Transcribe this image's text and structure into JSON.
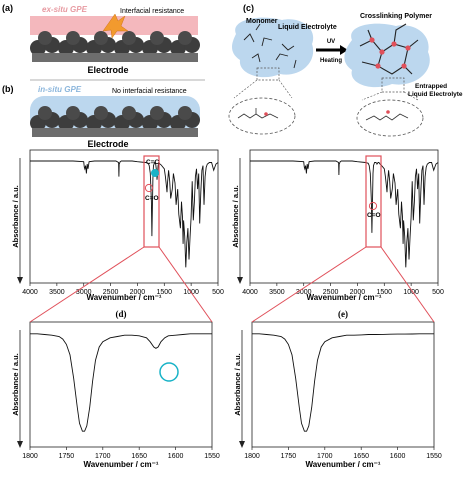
{
  "panel_a": {
    "label": "(a)",
    "gpe_label": "ex-situ GPE",
    "annotation": "Interfacial resistance",
    "electrode": "Electrode"
  },
  "panel_b": {
    "label": "(b)",
    "gpe_label": "in-situ GPE",
    "annotation": "No interfacial resistance",
    "electrode": "Electrode"
  },
  "panel_c": {
    "label": "(c)",
    "monomer": "Monomer",
    "liquid_electrolyte": "Liquid Electrolyte",
    "crosslinking_polymer": "Crosslinking Polymer",
    "uv": "UV",
    "heating": "Heating",
    "entrapped_1": "Entrapped",
    "entrapped_2": "Liquid Electrolyte"
  },
  "colors": {
    "gpe_pink": "#f4b8bd",
    "gpe_blue": "#bcd7ee",
    "highlight_red": "#e0505a",
    "circle_cyan": "#19b3c7",
    "sphere": "#3d3d3d",
    "electrode": "#6d6d6d"
  },
  "chart_data": [
    {
      "id": "ftir-left",
      "type": "line",
      "xlabel": "Wavenumber / cm⁻¹",
      "ylabel": "Absorbance / a.u.",
      "xlim": [
        4000,
        500
      ],
      "xticks": [
        4000,
        3500,
        3000,
        2500,
        2000,
        1500,
        1000,
        500
      ],
      "annotations": [
        "C=C",
        "C=O"
      ],
      "x": [
        4000,
        3600,
        3200,
        3000,
        2990,
        2980,
        2965,
        2950,
        2935,
        2920,
        2900,
        2800,
        2400,
        2350,
        2345,
        2340,
        2320,
        2300,
        2100,
        2000,
        1850,
        1800,
        1780,
        1760,
        1740,
        1730,
        1720,
        1710,
        1700,
        1680,
        1660,
        1640,
        1635,
        1625,
        1615,
        1600,
        1580,
        1560,
        1500,
        1480,
        1460,
        1450,
        1440,
        1420,
        1400,
        1380,
        1350,
        1330,
        1300,
        1280,
        1250,
        1230,
        1200,
        1180,
        1160,
        1150,
        1140,
        1120,
        1100,
        1080,
        1060,
        1040,
        1020,
        1000,
        980,
        960,
        940,
        920,
        900,
        880,
        860,
        840,
        820,
        800,
        780,
        760,
        740,
        720,
        700,
        660,
        620,
        580,
        540,
        500
      ],
      "y": [
        0.98,
        0.98,
        0.98,
        0.975,
        0.94,
        0.93,
        0.95,
        0.9,
        0.96,
        0.93,
        0.975,
        0.98,
        0.98,
        0.97,
        0.88,
        0.96,
        0.975,
        0.98,
        0.98,
        0.975,
        0.97,
        0.965,
        0.95,
        0.9,
        0.72,
        0.5,
        0.72,
        0.9,
        0.95,
        0.97,
        0.96,
        0.9,
        0.86,
        0.9,
        0.95,
        0.97,
        0.96,
        0.955,
        0.93,
        0.88,
        0.82,
        0.78,
        0.84,
        0.92,
        0.85,
        0.74,
        0.8,
        0.9,
        0.84,
        0.7,
        0.8,
        0.64,
        0.55,
        0.72,
        0.62,
        0.45,
        0.6,
        0.5,
        0.3,
        0.46,
        0.55,
        0.35,
        0.5,
        0.62,
        0.85,
        0.6,
        0.72,
        0.88,
        0.93,
        0.8,
        0.9,
        0.58,
        0.78,
        0.92,
        0.95,
        0.7,
        0.88,
        0.94,
        0.96,
        0.97,
        0.97,
        0.92,
        0.96,
        0.97
      ]
    },
    {
      "id": "ftir-right",
      "type": "line",
      "xlabel": "Wavenumber / cm⁻¹",
      "ylabel": "Absorbance / a.u.",
      "xlim": [
        4000,
        500
      ],
      "xticks": [
        4000,
        3500,
        3000,
        2500,
        2000,
        1500,
        1000,
        500
      ],
      "annotations": [
        "C=O"
      ],
      "x": [
        4000,
        3600,
        3200,
        3000,
        2990,
        2980,
        2965,
        2950,
        2935,
        2920,
        2900,
        2800,
        2400,
        2350,
        2345,
        2340,
        2320,
        2300,
        2100,
        2000,
        1850,
        1800,
        1780,
        1760,
        1740,
        1730,
        1720,
        1710,
        1700,
        1680,
        1660,
        1640,
        1635,
        1625,
        1615,
        1600,
        1580,
        1560,
        1500,
        1480,
        1460,
        1450,
        1440,
        1420,
        1400,
        1380,
        1350,
        1330,
        1300,
        1280,
        1250,
        1230,
        1200,
        1180,
        1160,
        1150,
        1140,
        1120,
        1100,
        1080,
        1060,
        1040,
        1020,
        1000,
        980,
        960,
        940,
        920,
        900,
        880,
        860,
        840,
        820,
        800,
        780,
        760,
        740,
        720,
        700,
        660,
        620,
        580,
        540,
        500
      ],
      "y": [
        0.98,
        0.98,
        0.98,
        0.975,
        0.94,
        0.93,
        0.95,
        0.9,
        0.96,
        0.93,
        0.975,
        0.98,
        0.98,
        0.97,
        0.89,
        0.96,
        0.975,
        0.98,
        0.98,
        0.975,
        0.97,
        0.965,
        0.95,
        0.9,
        0.72,
        0.52,
        0.72,
        0.9,
        0.95,
        0.97,
        0.97,
        0.965,
        0.96,
        0.965,
        0.97,
        0.97,
        0.96,
        0.955,
        0.93,
        0.88,
        0.82,
        0.78,
        0.84,
        0.92,
        0.85,
        0.74,
        0.8,
        0.9,
        0.84,
        0.7,
        0.8,
        0.64,
        0.55,
        0.72,
        0.62,
        0.45,
        0.6,
        0.5,
        0.3,
        0.46,
        0.55,
        0.35,
        0.5,
        0.62,
        0.85,
        0.6,
        0.72,
        0.88,
        0.93,
        0.8,
        0.9,
        0.58,
        0.78,
        0.92,
        0.95,
        0.7,
        0.88,
        0.94,
        0.96,
        0.97,
        0.97,
        0.92,
        0.96,
        0.97
      ]
    },
    {
      "id": "ftir-zoom-d",
      "label": "(d)",
      "type": "line",
      "xlabel": "Wavenumber / cm⁻¹",
      "ylabel": "Absorbance / a.u.",
      "xlim": [
        1800,
        1550
      ],
      "xticks": [
        1800,
        1750,
        1700,
        1650,
        1600,
        1550
      ],
      "x": [
        1800,
        1790,
        1780,
        1770,
        1760,
        1755,
        1750,
        1745,
        1740,
        1735,
        1732,
        1728,
        1725,
        1722,
        1718,
        1714,
        1710,
        1705,
        1700,
        1690,
        1680,
        1670,
        1660,
        1650,
        1640,
        1635,
        1630,
        1627,
        1624,
        1620,
        1615,
        1610,
        1600,
        1590,
        1580,
        1570,
        1560,
        1550
      ],
      "y": [
        0.96,
        0.96,
        0.955,
        0.95,
        0.94,
        0.92,
        0.88,
        0.8,
        0.62,
        0.4,
        0.28,
        0.22,
        0.22,
        0.26,
        0.4,
        0.6,
        0.76,
        0.86,
        0.9,
        0.93,
        0.94,
        0.95,
        0.95,
        0.945,
        0.93,
        0.9,
        0.86,
        0.85,
        0.86,
        0.9,
        0.93,
        0.945,
        0.95,
        0.955,
        0.96,
        0.96,
        0.96,
        0.96
      ]
    },
    {
      "id": "ftir-zoom-e",
      "label": "(e)",
      "type": "line",
      "xlabel": "Wavenumber / cm⁻¹",
      "ylabel": "Absorbance / a.u.",
      "xlim": [
        1800,
        1550
      ],
      "xticks": [
        1800,
        1750,
        1700,
        1650,
        1600,
        1550
      ],
      "x": [
        1800,
        1790,
        1780,
        1770,
        1760,
        1755,
        1750,
        1745,
        1740,
        1735,
        1732,
        1728,
        1725,
        1722,
        1718,
        1714,
        1710,
        1705,
        1700,
        1690,
        1680,
        1670,
        1660,
        1650,
        1640,
        1630,
        1620,
        1610,
        1600,
        1590,
        1580,
        1570,
        1560,
        1550
      ],
      "y": [
        0.96,
        0.96,
        0.955,
        0.95,
        0.94,
        0.92,
        0.88,
        0.8,
        0.62,
        0.4,
        0.28,
        0.22,
        0.22,
        0.26,
        0.4,
        0.6,
        0.76,
        0.86,
        0.9,
        0.93,
        0.94,
        0.95,
        0.95,
        0.952,
        0.955,
        0.955,
        0.956,
        0.957,
        0.958,
        0.958,
        0.959,
        0.96,
        0.96,
        0.96
      ]
    }
  ]
}
